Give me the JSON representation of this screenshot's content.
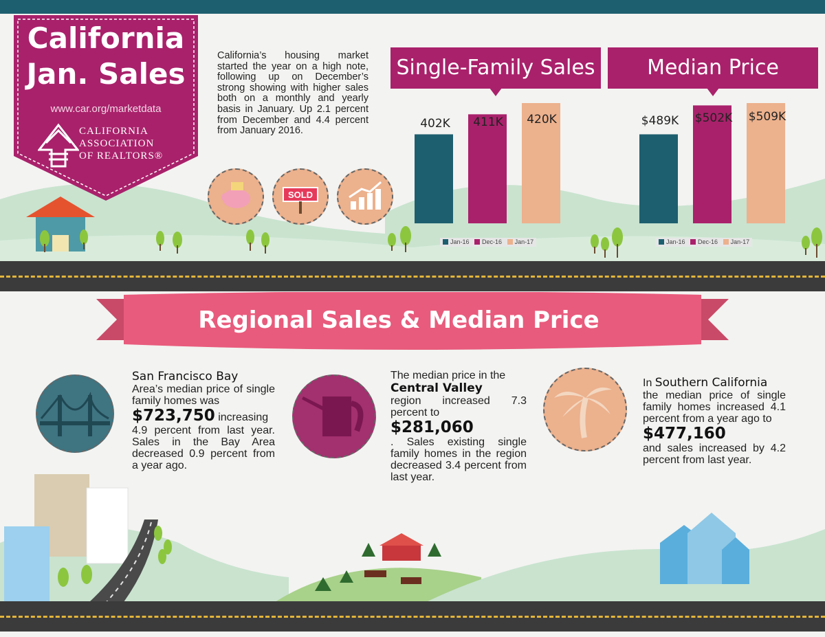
{
  "banner": {
    "title": "California\nJan. Sales",
    "url": "www.car.org/marketdata",
    "org_name": "CALIFORNIA\nASSOCIATION\nOF REALTORS®",
    "color": "#a9216b"
  },
  "intro": {
    "text": "California’s housing market started the year on a high note, following up on December’s strong showing with higher sales both on a monthly and yearly basis in January. Up 2.1 percent from December and 4.4 percent from January 2016."
  },
  "icons": [
    "piggy-bank-icon",
    "sold-sign-icon",
    "growth-chart-icon"
  ],
  "sold_sign_text": "SOLD",
  "colors": {
    "teal": "#1d5f6f",
    "magenta": "#a9216b",
    "peach": "#ecb18d",
    "ribbon": "#e85b7c"
  },
  "chart_data": [
    {
      "type": "bar",
      "title": "Single-Family Sales",
      "categories": [
        "Jan-16",
        "Dec-16",
        "Jan-17"
      ],
      "values": [
        402,
        411,
        420
      ],
      "value_labels": [
        "402K",
        "411K",
        "420K"
      ],
      "legend": [
        "Jan-16",
        "Dec-16",
        "Jan-17"
      ],
      "legend_position": "bottom"
    },
    {
      "type": "bar",
      "title": "Median Price",
      "categories": [
        "Jan-16",
        "Dec-16",
        "Jan-17"
      ],
      "values": [
        489,
        502,
        509
      ],
      "value_labels": [
        "$489K",
        "$502K",
        "$509K"
      ],
      "legend": [
        "Jan-16",
        "Dec-16",
        "Jan-17"
      ],
      "legend_position": "bottom"
    }
  ],
  "regional": {
    "title": "Regional Sales & Median Price",
    "bay": {
      "heading": "San Francisco Bay",
      "text_a": "Area’s median price of single family homes was",
      "price": "$723,750",
      "text_b": "increasing",
      "text_c": "4.9 percent from last year. Sales in the Bay Area decreased 0.9 percent from a year ago.",
      "icon": "golden-gate-bridge-icon"
    },
    "central": {
      "text_a": "The median price in the",
      "heading": "Central Valley",
      "text_b": "region increased 7.3 percent to",
      "price": "$281,060",
      "text_c": ". Sales existing single family homes in the region decreased 3.4 percent from last year.",
      "icon": "watering-can-icon"
    },
    "southern": {
      "text_a": "In",
      "heading": "Southern California",
      "text_b": "the median price of single family homes increased 4.1 percent from a year ago to",
      "price": "$477,160",
      "text_c": "and sales increased by 4.2 percent from last year.",
      "icon": "palm-tree-icon"
    }
  }
}
